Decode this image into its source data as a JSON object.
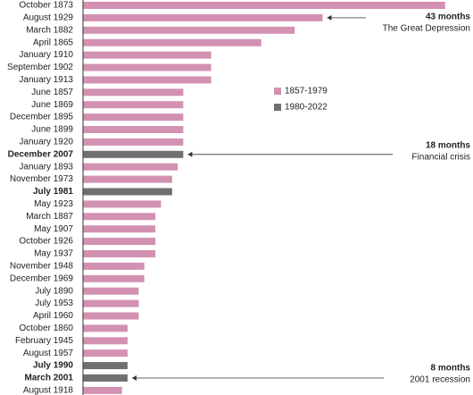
{
  "chart_data": {
    "type": "bar",
    "orientation": "horizontal",
    "categories": [
      "October 1873",
      "August 1929",
      "March 1882",
      "April 1865",
      "January 1910",
      "September 1902",
      "January 1913",
      "June 1857",
      "June 1869",
      "December 1895",
      "June 1899",
      "January 1920",
      "December 2007",
      "January 1893",
      "November 1973",
      "July 1981",
      "May 1923",
      "March 1887",
      "May 1907",
      "October 1926",
      "May 1937",
      "November 1948",
      "December 1969",
      "July 1890",
      "July 1953",
      "April 1960",
      "October 1860",
      "February 1945",
      "August 1957",
      "July 1990",
      "March 2001",
      "August 1918"
    ],
    "series": [
      {
        "name": "1857-1979",
        "color": "#d391b2",
        "values": [
          65,
          43,
          38,
          32,
          23,
          23,
          23,
          18,
          18,
          18,
          18,
          18,
          null,
          17,
          16,
          null,
          14,
          13,
          13,
          13,
          13,
          11,
          11,
          10,
          10,
          10,
          8,
          8,
          8,
          null,
          null,
          7
        ]
      },
      {
        "name": "1980-2022",
        "color": "#707070",
        "values": [
          null,
          null,
          null,
          null,
          null,
          null,
          null,
          null,
          null,
          null,
          null,
          null,
          18,
          null,
          null,
          16,
          null,
          null,
          null,
          null,
          null,
          null,
          null,
          null,
          null,
          null,
          null,
          null,
          null,
          8,
          8,
          null
        ]
      }
    ],
    "xlim": [
      0,
      70
    ],
    "annotations": [
      {
        "label": "43 months",
        "text": "The Great Depression"
      },
      {
        "label": "18 months",
        "text": "Financial crisis"
      },
      {
        "label": "8 months",
        "text": "2001 recession"
      }
    ]
  }
}
